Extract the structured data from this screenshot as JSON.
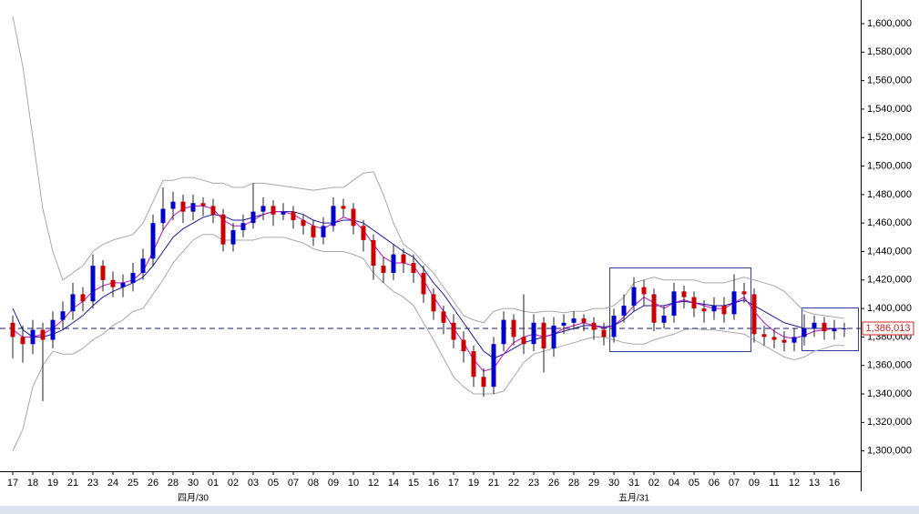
{
  "chart_data": {
    "type": "candlestick",
    "categories": [
      "17",
      null,
      "18",
      null,
      "19",
      null,
      "21",
      null,
      "23",
      null,
      "24",
      null,
      "25",
      null,
      "26",
      null,
      "28",
      null,
      "30",
      null,
      "01",
      null,
      "02",
      null,
      "03",
      null,
      "05",
      null,
      "07",
      null,
      "08",
      null,
      "09",
      null,
      "10",
      null,
      "12",
      null,
      "14",
      null,
      "15",
      null,
      "16",
      null,
      "17",
      null,
      "19",
      null,
      "21",
      null,
      "22",
      null,
      "23",
      null,
      "26",
      null,
      "28",
      null,
      "29",
      null,
      "30",
      null,
      "31",
      null,
      "02",
      null,
      "04",
      null,
      "05",
      null,
      "06",
      null,
      "07",
      null,
      "09",
      null,
      "11",
      null,
      "12",
      null,
      "13",
      null,
      "16",
      null
    ],
    "month_labels": [
      null,
      null,
      null,
      null,
      null,
      null,
      null,
      null,
      null,
      null,
      null,
      null,
      null,
      null,
      null,
      null,
      null,
      null,
      "四月/30",
      null,
      null,
      null,
      null,
      null,
      null,
      null,
      null,
      null,
      null,
      null,
      null,
      null,
      null,
      null,
      null,
      null,
      null,
      null,
      null,
      null,
      null,
      null,
      null,
      null,
      null,
      null,
      null,
      null,
      null,
      null,
      null,
      null,
      null,
      null,
      null,
      null,
      null,
      null,
      null,
      null,
      null,
      null,
      "五月/31",
      null,
      null,
      null,
      null,
      null,
      null,
      null,
      null,
      null,
      null,
      null,
      null,
      null,
      null,
      null,
      null,
      null,
      null,
      null,
      null,
      null
    ],
    "open": [
      1390000,
      1380000,
      1375000,
      1385000,
      1378000,
      1392000,
      1398000,
      1410000,
      1405000,
      1430000,
      1420000,
      1415000,
      1418000,
      1425000,
      1435000,
      1460000,
      1470000,
      1475000,
      1468000,
      1474000,
      1472000,
      1466000,
      1445000,
      1455000,
      1460000,
      1468000,
      1472000,
      1466000,
      1468000,
      1462000,
      1458000,
      1450000,
      1458000,
      1472000,
      1470000,
      1458000,
      1448000,
      1430000,
      1425000,
      1438000,
      1432000,
      1425000,
      1410000,
      1398000,
      1390000,
      1378000,
      1370000,
      1352000,
      1345000,
      1375000,
      1392000,
      1380000,
      1375000,
      1390000,
      1372000,
      1388000,
      1390000,
      1393000,
      1390000,
      1385000,
      1380000,
      1395000,
      1402000,
      1415000,
      1410000,
      1390000,
      1395000,
      1412000,
      1408000,
      1400000,
      1398000,
      1402000,
      1396000,
      1412000,
      1410000,
      1382000,
      1380000,
      1378000,
      1376000,
      1380000,
      1386000,
      1390000,
      1384000,
      1386000
    ],
    "high": [
      1395000,
      1388000,
      1392000,
      1390000,
      1398000,
      1405000,
      1418000,
      1415000,
      1438000,
      1434000,
      1426000,
      1424000,
      1432000,
      1442000,
      1466000,
      1485000,
      1482000,
      1480000,
      1480000,
      1478000,
      1477000,
      1470000,
      1460000,
      1466000,
      1488000,
      1478000,
      1476000,
      1474000,
      1472000,
      1466000,
      1462000,
      1464000,
      1478000,
      1477000,
      1474000,
      1462000,
      1452000,
      1436000,
      1445000,
      1442000,
      1438000,
      1430000,
      1414000,
      1402000,
      1396000,
      1384000,
      1374000,
      1358000,
      1380000,
      1398000,
      1396000,
      1410000,
      1396000,
      1394000,
      1394000,
      1396000,
      1398000,
      1396000,
      1394000,
      1390000,
      1400000,
      1410000,
      1422000,
      1420000,
      1414000,
      1402000,
      1418000,
      1416000,
      1412000,
      1406000,
      1408000,
      1408000,
      1424000,
      1418000,
      1414000,
      1388000,
      1386000,
      1384000,
      1386000,
      1396000,
      1395000,
      1394000,
      1392000,
      1390000
    ],
    "low": [
      1365000,
      1362000,
      1368000,
      1335000,
      1372000,
      1385000,
      1392000,
      1398000,
      1400000,
      1412000,
      1408000,
      1408000,
      1412000,
      1420000,
      1430000,
      1455000,
      1462000,
      1460000,
      1462000,
      1465000,
      1460000,
      1440000,
      1440000,
      1450000,
      1456000,
      1462000,
      1458000,
      1462000,
      1456000,
      1452000,
      1444000,
      1445000,
      1454000,
      1464000,
      1452000,
      1440000,
      1420000,
      1418000,
      1420000,
      1425000,
      1418000,
      1404000,
      1392000,
      1382000,
      1372000,
      1362000,
      1345000,
      1338000,
      1340000,
      1370000,
      1374000,
      1368000,
      1370000,
      1355000,
      1366000,
      1382000,
      1385000,
      1384000,
      1378000,
      1374000,
      1376000,
      1390000,
      1398000,
      1402000,
      1384000,
      1386000,
      1390000,
      1400000,
      1394000,
      1390000,
      1392000,
      1390000,
      1392000,
      1404000,
      1376000,
      1374000,
      1372000,
      1370000,
      1370000,
      1374000,
      1380000,
      1378000,
      1378000,
      1380000
    ],
    "close": [
      1380000,
      1375000,
      1385000,
      1378000,
      1392000,
      1398000,
      1410000,
      1405000,
      1430000,
      1420000,
      1415000,
      1418000,
      1425000,
      1435000,
      1460000,
      1470000,
      1475000,
      1468000,
      1474000,
      1472000,
      1466000,
      1445000,
      1455000,
      1460000,
      1468000,
      1472000,
      1466000,
      1468000,
      1462000,
      1458000,
      1450000,
      1458000,
      1472000,
      1470000,
      1458000,
      1448000,
      1430000,
      1425000,
      1438000,
      1432000,
      1425000,
      1410000,
      1398000,
      1390000,
      1378000,
      1370000,
      1352000,
      1345000,
      1375000,
      1392000,
      1380000,
      1375000,
      1390000,
      1372000,
      1388000,
      1390000,
      1393000,
      1390000,
      1385000,
      1380000,
      1395000,
      1402000,
      1415000,
      1410000,
      1390000,
      1395000,
      1412000,
      1408000,
      1400000,
      1398000,
      1402000,
      1396000,
      1412000,
      1410000,
      1382000,
      1380000,
      1378000,
      1376000,
      1380000,
      1386000,
      1390000,
      1384000,
      1386000,
      1386013
    ],
    "up_color": "#0000cc",
    "down_color": "#cc0000",
    "lines": [
      {
        "color": "#a8a8a8",
        "values": [
          1605000,
          1570000,
          1520000,
          1470000,
          1440000,
          1420000,
          1425000,
          1430000,
          1440000,
          1445000,
          1448000,
          1450000,
          1452000,
          1460000,
          1475000,
          1490000,
          1490000,
          1492000,
          1492000,
          1490000,
          1488000,
          1488000,
          1485000,
          1485000,
          1488000,
          1488000,
          1487000,
          1486000,
          1485000,
          1484000,
          1483000,
          1484000,
          1485000,
          1485000,
          1490000,
          1495000,
          1496000,
          1480000,
          1460000,
          1445000,
          1440000,
          1432000,
          1425000,
          1415000,
          1405000,
          1395000,
          1392000,
          1390000,
          1398000,
          1400000,
          1400000,
          1398000,
          1397000,
          1398000,
          1398000,
          1397000,
          1398000,
          1398000,
          1400000,
          1400000,
          1402000,
          1408000,
          1418000,
          1420000,
          1422000,
          1420000,
          1420000,
          1420000,
          1420000,
          1418000,
          1418000,
          1418000,
          1420000,
          1422000,
          1420000,
          1418000,
          1416000,
          1412000,
          1405000,
          1398000,
          1396000,
          1395000,
          1394000,
          1393000
        ]
      },
      {
        "color": "#a8a8a8",
        "values": [
          1300000,
          1315000,
          1345000,
          1360000,
          1370000,
          1368000,
          1368000,
          1372000,
          1378000,
          1382000,
          1388000,
          1392000,
          1398000,
          1400000,
          1410000,
          1420000,
          1432000,
          1440000,
          1448000,
          1452000,
          1452000,
          1448000,
          1448000,
          1448000,
          1448000,
          1450000,
          1450000,
          1450000,
          1448000,
          1446000,
          1442000,
          1440000,
          1440000,
          1440000,
          1438000,
          1435000,
          1425000,
          1418000,
          1412000,
          1408000,
          1402000,
          1390000,
          1378000,
          1365000,
          1352000,
          1345000,
          1340000,
          1340000,
          1340000,
          1342000,
          1352000,
          1362000,
          1368000,
          1370000,
          1372000,
          1374000,
          1376000,
          1378000,
          1380000,
          1380000,
          1378000,
          1376000,
          1375000,
          1375000,
          1378000,
          1380000,
          1382000,
          1385000,
          1386000,
          1385000,
          1385000,
          1384000,
          1383000,
          1382000,
          1378000,
          1374000,
          1370000,
          1366000,
          1364000,
          1366000,
          1370000,
          1372000,
          1374000,
          1374000
        ]
      },
      {
        "color": "#1a1a9c",
        "values": [
          1400000,
          1385000,
          1380000,
          1380000,
          1382000,
          1385000,
          1390000,
          1395000,
          1402000,
          1408000,
          1412000,
          1415000,
          1418000,
          1422000,
          1430000,
          1440000,
          1450000,
          1456000,
          1460000,
          1464000,
          1466000,
          1465000,
          1462000,
          1462000,
          1464000,
          1466000,
          1468000,
          1468000,
          1468000,
          1466000,
          1462000,
          1460000,
          1460000,
          1462000,
          1462000,
          1460000,
          1455000,
          1450000,
          1445000,
          1440000,
          1436000,
          1428000,
          1418000,
          1410000,
          1400000,
          1390000,
          1380000,
          1370000,
          1365000,
          1368000,
          1372000,
          1376000,
          1378000,
          1380000,
          1382000,
          1384000,
          1386000,
          1388000,
          1388000,
          1387000,
          1388000,
          1392000,
          1398000,
          1402000,
          1402000,
          1402000,
          1404000,
          1405000,
          1404000,
          1403000,
          1402000,
          1402000,
          1404000,
          1406000,
          1402000,
          1398000,
          1394000,
          1390000,
          1388000,
          1386000,
          1386000,
          1386000,
          1386000,
          1386000
        ]
      },
      {
        "color": "#c010c0",
        "values": [
          1385000,
          1380000,
          1380000,
          1382000,
          1386000,
          1392000,
          1400000,
          1405000,
          1412000,
          1416000,
          1418000,
          1418000,
          1420000,
          1426000,
          1440000,
          1455000,
          1465000,
          1470000,
          1472000,
          1472000,
          1470000,
          1462000,
          1458000,
          1458000,
          1462000,
          1466000,
          1468000,
          1468000,
          1466000,
          1462000,
          1458000,
          1456000,
          1460000,
          1464000,
          1462000,
          1455000,
          1445000,
          1436000,
          1432000,
          1432000,
          1430000,
          1420000,
          1408000,
          1398000,
          1386000,
          1376000,
          1364000,
          1356000,
          1358000,
          1368000,
          1376000,
          1380000,
          1382000,
          1380000,
          1382000,
          1386000,
          1388000,
          1390000,
          1388000,
          1386000,
          1388000,
          1394000,
          1402000,
          1408000,
          1404000,
          1400000,
          1404000,
          1406000,
          1404000,
          1402000,
          1400000,
          1400000,
          1404000,
          1408000,
          1398000,
          1390000,
          1384000,
          1380000,
          1379000,
          1381000,
          1384000,
          1385000,
          1386000,
          1386000
        ]
      }
    ],
    "ylim": [
      1287000,
      1611500
    ],
    "yticks": [
      {
        "value": 1300000,
        "label": "1,300,000"
      },
      {
        "value": 1320000,
        "label": "1,320,000"
      },
      {
        "value": 1340000,
        "label": "1,340,000"
      },
      {
        "value": 1360000,
        "label": "1,360,000"
      },
      {
        "value": 1380000,
        "label": "1,380,000"
      },
      {
        "value": 1400000,
        "label": "1,400,000"
      },
      {
        "value": 1420000,
        "label": "1,420,000"
      },
      {
        "value": 1440000,
        "label": "1,440,000"
      },
      {
        "value": 1460000,
        "label": "1,460,000"
      },
      {
        "value": 1480000,
        "label": "1,480,000"
      },
      {
        "value": 1500000,
        "label": "1,500,000"
      },
      {
        "value": 1520000,
        "label": "1,520,000"
      },
      {
        "value": 1540000,
        "label": "1,540,000"
      },
      {
        "value": 1560000,
        "label": "1,560,000"
      },
      {
        "value": 1580000,
        "label": "1,580,000"
      },
      {
        "value": 1600000,
        "label": "1,600,000"
      }
    ],
    "last_price": {
      "value": 1386013,
      "label": "1,386,013"
    },
    "last_price_color": "#cc2222"
  }
}
